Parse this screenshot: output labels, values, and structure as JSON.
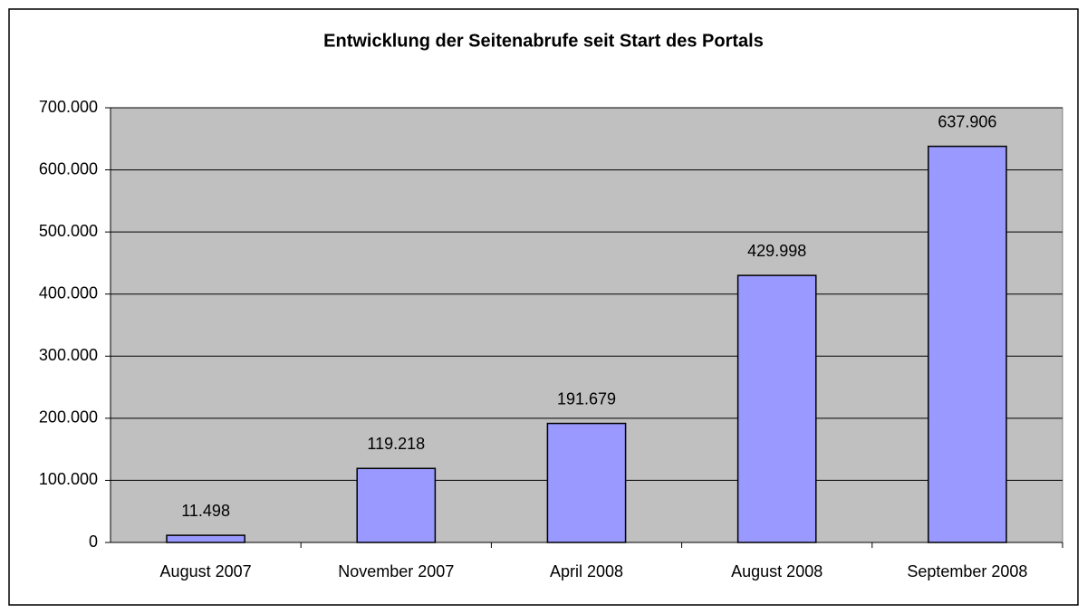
{
  "chart_data": {
    "type": "bar",
    "title": "Entwicklung der Seitenabrufe seit Start des Portals",
    "categories": [
      "August 2007",
      "November 2007",
      "April 2008",
      "August 2008",
      "September 2008"
    ],
    "values": [
      11498,
      119218,
      191679,
      429998,
      637906
    ],
    "value_labels": [
      "11.498",
      "119.218",
      "191.679",
      "429.998",
      "637.906"
    ],
    "color": "#9999ff",
    "ylim": [
      0,
      700000
    ],
    "yticks": [
      0,
      {
        "value": 100000,
        "label": "100.000"
      },
      {
        "value": 200000,
        "label": "200.000"
      },
      {
        "value": 300000,
        "label": "300.000"
      },
      {
        "value": 400000,
        "label": "400.000"
      },
      {
        "value": 500000,
        "label": "500.000"
      },
      {
        "value": 600000,
        "label": "600.000"
      },
      {
        "value": 700000,
        "label": "700.000"
      }
    ],
    "grid": true
  }
}
